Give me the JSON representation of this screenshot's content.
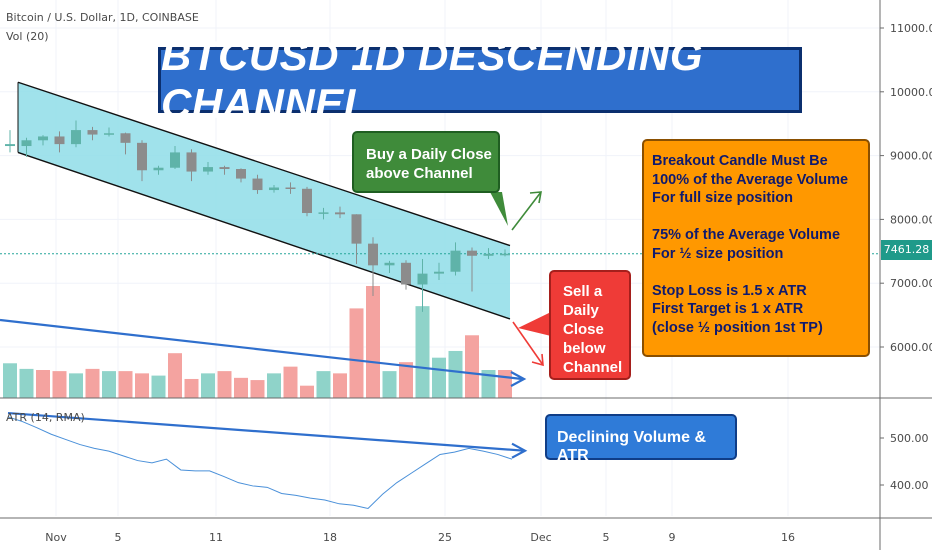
{
  "header": {
    "symbol_line": "Bitcoin / U.S. Dollar, 1D, COINBASE",
    "volume_label": "Vol (20)",
    "atr_label": "ATR (14, RMA)"
  },
  "annotations": {
    "title": "BTCUSD 1D DESCENDING CHANNEL",
    "buy_lines": [
      "Buy a Daily Close",
      "above Channel"
    ],
    "sell_lines": [
      "Sell a",
      "Daily",
      "Close",
      "below",
      "Channel"
    ],
    "info_lines": [
      "Breakout Candle Must Be",
      "100% of the Average Volume",
      "For full size position",
      "",
      "75% of the Average Volume",
      "For ½ size position",
      "",
      "Stop Loss is 1.5 x ATR",
      "First Target is 1 x ATR",
      "(close ½ position 1st TP)"
    ],
    "declining_label": "Declining Volume & ATR"
  },
  "colors": {
    "up": "#26a69a",
    "down": "#ef5350",
    "up_candle": "#5fb3a9",
    "down_candle": "#8c8c8c",
    "channel_fill": "#8fdde8",
    "trend_line": "#2f6fcd",
    "buy_arrow": "#3f8b3a",
    "sell_arrow": "#ef3b37",
    "atr_line": "#4a90d9",
    "price_line": "#26a69a"
  },
  "last_price": "7461.28",
  "chart_data": [
    {
      "type": "candlestick",
      "title": "Bitcoin / U.S. Dollar, 1D, COINBASE",
      "x_ticks": [
        "Nov",
        "5",
        "11",
        "18",
        "25",
        "Dec",
        "5",
        "9",
        "16"
      ],
      "y_ticks": [
        "11000.00",
        "10000.00",
        "9000.00",
        "8000.00",
        "7000.00",
        "6000.00"
      ],
      "ylim": [
        5400,
        11350
      ],
      "dates": [
        "Oct 31",
        "Nov 1",
        "Nov 2",
        "Nov 3",
        "Nov 4",
        "Nov 5",
        "Nov 6",
        "Nov 7",
        "Nov 8",
        "Nov 9",
        "Nov 10",
        "Nov 11",
        "Nov 12",
        "Nov 13",
        "Nov 14",
        "Nov 15",
        "Nov 16",
        "Nov 17",
        "Nov 18",
        "Nov 19",
        "Nov 20",
        "Nov 21",
        "Nov 22",
        "Nov 23",
        "Nov 24",
        "Nov 25",
        "Nov 26",
        "Nov 27",
        "Nov 28",
        "Nov 29",
        "Nov 30"
      ],
      "ohlc": [
        [
          9150,
          9400,
          9050,
          9180
        ],
        [
          9150,
          9280,
          8980,
          9240
        ],
        [
          9240,
          9320,
          9160,
          9300
        ],
        [
          9300,
          9380,
          9050,
          9180
        ],
        [
          9180,
          9550,
          9130,
          9400
        ],
        [
          9400,
          9450,
          9240,
          9330
        ],
        [
          9330,
          9440,
          9300,
          9350
        ],
        [
          9350,
          9360,
          9020,
          9200
        ],
        [
          9200,
          9240,
          8600,
          8770
        ],
        [
          8770,
          8840,
          8700,
          8810
        ],
        [
          8810,
          9150,
          8790,
          9050
        ],
        [
          9050,
          9100,
          8600,
          8750
        ],
        [
          8750,
          8900,
          8700,
          8820
        ],
        [
          8820,
          8840,
          8700,
          8790
        ],
        [
          8790,
          8800,
          8580,
          8640
        ],
        [
          8640,
          8700,
          8400,
          8460
        ],
        [
          8460,
          8540,
          8420,
          8500
        ],
        [
          8500,
          8580,
          8400,
          8480
        ],
        [
          8480,
          8510,
          8050,
          8100
        ],
        [
          8100,
          8180,
          8000,
          8110
        ],
        [
          8110,
          8200,
          8020,
          8080
        ],
        [
          8080,
          8080,
          7300,
          7620
        ],
        [
          7620,
          7720,
          6800,
          7280
        ],
        [
          7280,
          7350,
          7160,
          7320
        ],
        [
          7320,
          7360,
          6900,
          6980
        ],
        [
          6980,
          7380,
          6550,
          7150
        ],
        [
          7150,
          7320,
          7050,
          7180
        ],
        [
          7180,
          7640,
          7120,
          7510
        ],
        [
          7510,
          7560,
          6870,
          7430
        ],
        [
          7430,
          7550,
          7380,
          7460
        ],
        [
          7460,
          7530,
          7420,
          7461
        ]
      ],
      "volume_ylim": [
        0,
        125000
      ],
      "volume": [
        31000,
        26000,
        25000,
        24000,
        22000,
        26000,
        24000,
        24000,
        22000,
        20000,
        40000,
        17000,
        22000,
        24000,
        18000,
        16000,
        22000,
        28000,
        11000,
        24000,
        22000,
        80000,
        100000,
        24000,
        32000,
        82000,
        36000,
        42000,
        56000,
        25000,
        25000
      ],
      "volume_up": [
        true,
        true,
        false,
        false,
        true,
        false,
        true,
        false,
        false,
        true,
        false,
        false,
        true,
        false,
        false,
        false,
        true,
        false,
        false,
        true,
        false,
        false,
        false,
        true,
        false,
        true,
        true,
        true,
        false,
        true,
        false
      ],
      "channel": {
        "upper": [
          10150,
          7590
        ],
        "lower": [
          9050,
          6440
        ],
        "from": "Oct 31",
        "to": "Nov 30"
      }
    },
    {
      "type": "line",
      "title": "ATR (14, RMA)",
      "y_ticks": [
        "500.00",
        "400.00"
      ],
      "ylim": [
        330,
        580
      ],
      "values": [
        545,
        535,
        522,
        508,
        497,
        486,
        478,
        472,
        462,
        452,
        447,
        455,
        432,
        430,
        430,
        418,
        405,
        398,
        395,
        382,
        378,
        372,
        368,
        360,
        357,
        350,
        380,
        405,
        425,
        445,
        465,
        470,
        478,
        472,
        465,
        455
      ],
      "trend": [
        553,
        473
      ]
    }
  ]
}
